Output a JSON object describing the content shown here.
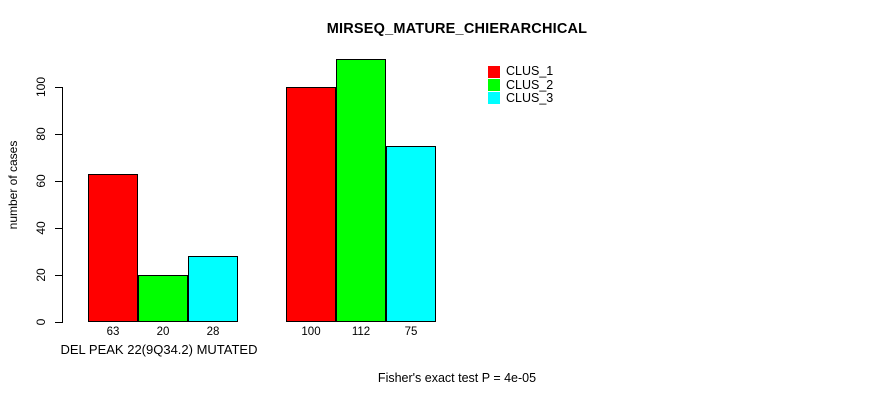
{
  "chart_data": {
    "type": "bar",
    "title": "MIRSEQ_MATURE_CHIERARCHICAL",
    "ylabel": "number of cases",
    "xlabel": "DEL PEAK 22(9Q34.2) MUTATED",
    "categories": [
      "DEL PEAK 22(9Q34.2) MUTATED",
      ""
    ],
    "series": [
      {
        "name": "CLUS_1",
        "color": "#ff0000",
        "values": [
          63,
          100
        ]
      },
      {
        "name": "CLUS_2",
        "color": "#00ff00",
        "values": [
          20,
          112
        ]
      },
      {
        "name": "CLUS_3",
        "color": "#00ffff",
        "values": [
          28,
          75
        ]
      }
    ],
    "bar_value_labels": [
      [
        "63",
        "20",
        "28"
      ],
      [
        "100",
        "112",
        "75"
      ]
    ],
    "yticks": [
      "0",
      "20",
      "40",
      "60",
      "80",
      "100"
    ],
    "ylim": [
      0,
      100
    ],
    "grid": false,
    "legend_position": "top-right",
    "legend": [
      {
        "label": "CLUS_1",
        "color": "#ff0000"
      },
      {
        "label": "CLUS_2",
        "color": "#00ff00"
      },
      {
        "label": "CLUS_3",
        "color": "#00ffff"
      }
    ],
    "annotation": "Fisher's exact test P = 4e-05"
  },
  "colors": {
    "axis": "#000000",
    "background": "#ffffff",
    "text": "#000000"
  }
}
